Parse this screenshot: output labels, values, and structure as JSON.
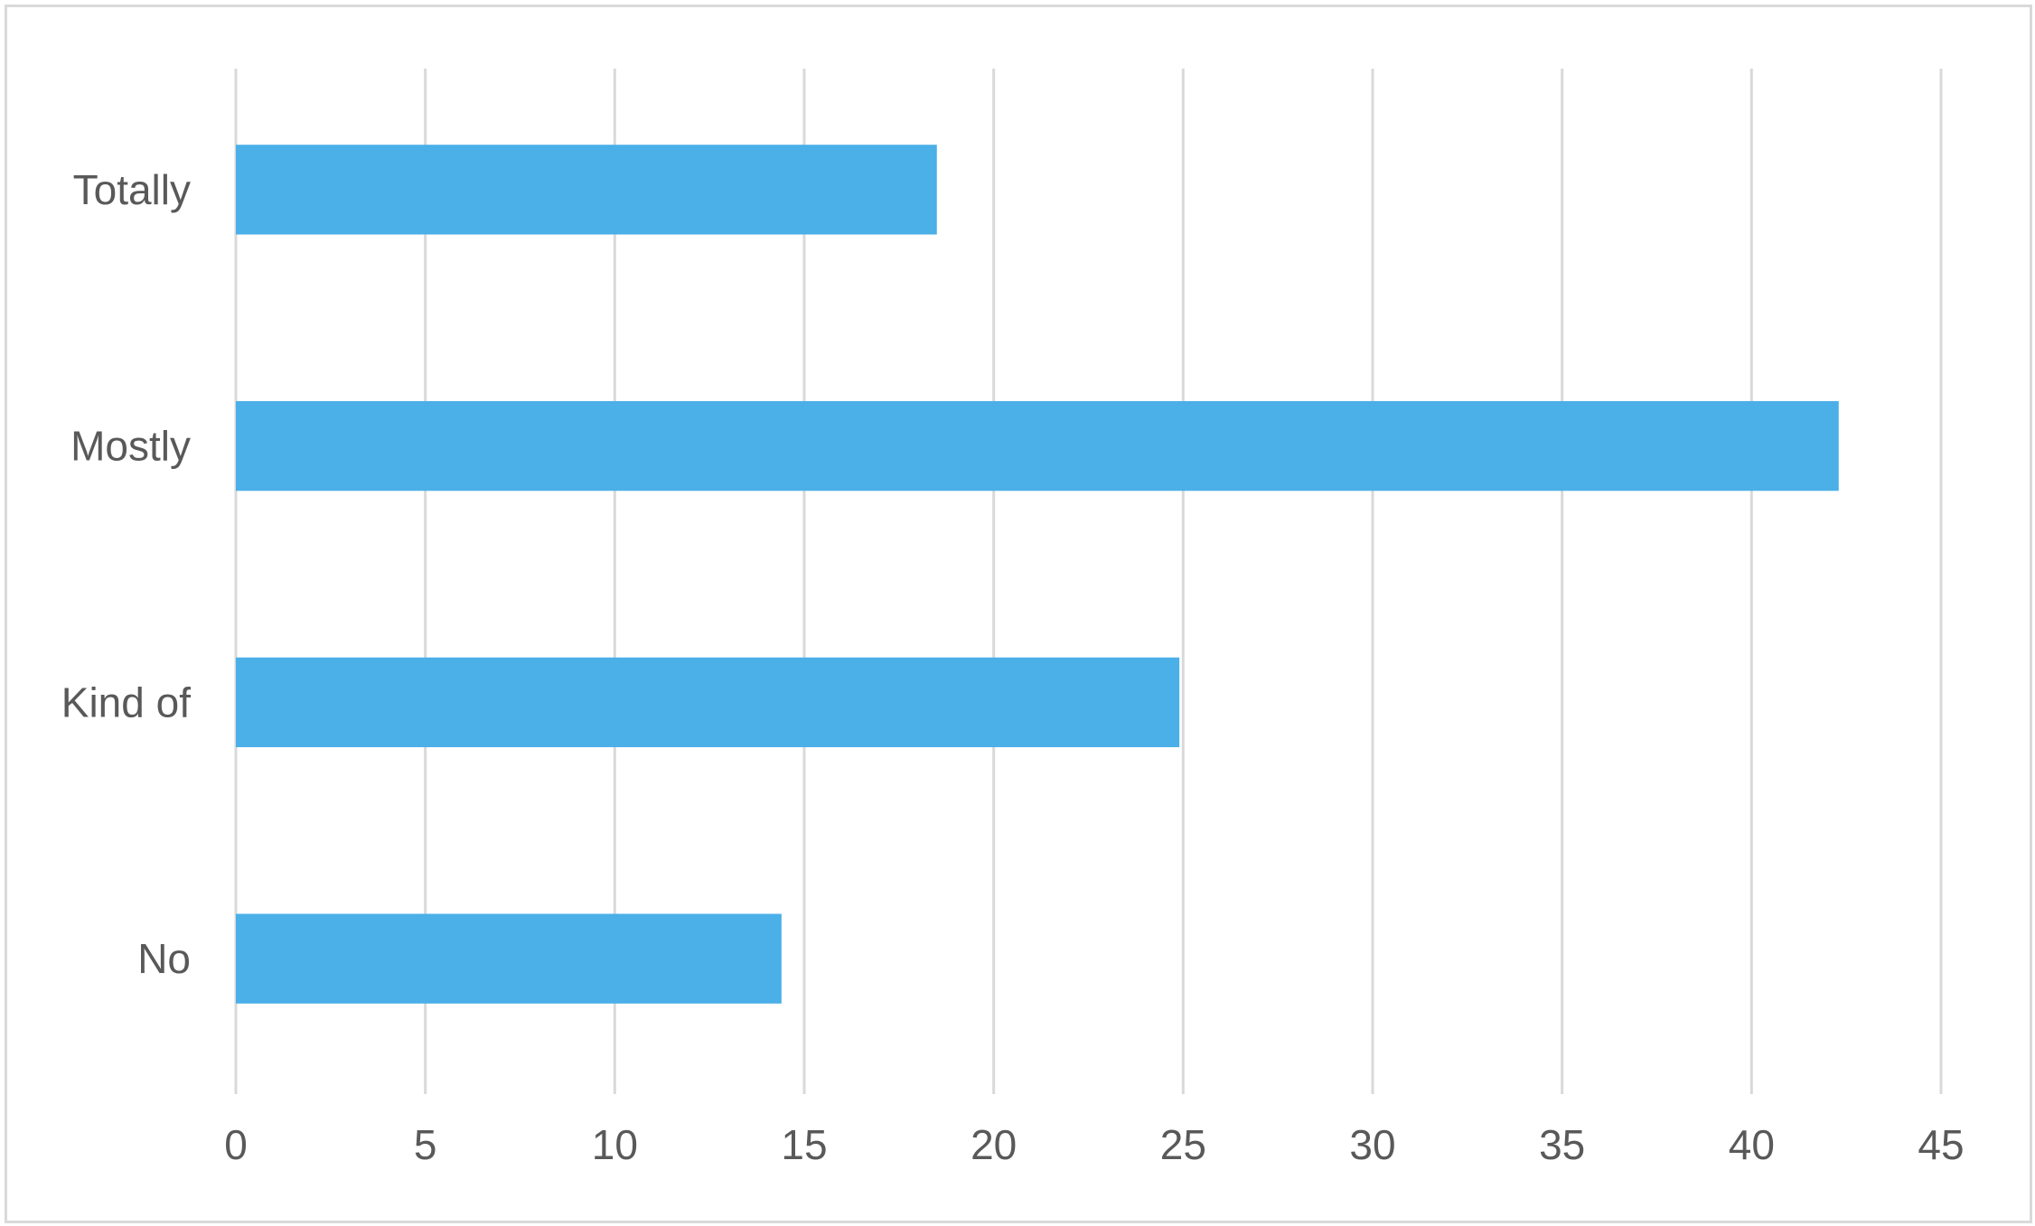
{
  "chart_data": {
    "type": "bar",
    "orientation": "horizontal",
    "categories": [
      "Totally",
      "Mostly",
      "Kind of",
      "No"
    ],
    "values": [
      18.5,
      42.3,
      24.9,
      14.4
    ],
    "xlim": [
      0,
      45
    ],
    "xticks": [
      "0",
      "5",
      "10",
      "15",
      "20",
      "25",
      "30",
      "35",
      "40",
      "45"
    ],
    "grid": "vertical",
    "bar_color": "#4BAFE8",
    "gridline_color": "#D9D9D9",
    "text_color": "#595959"
  }
}
